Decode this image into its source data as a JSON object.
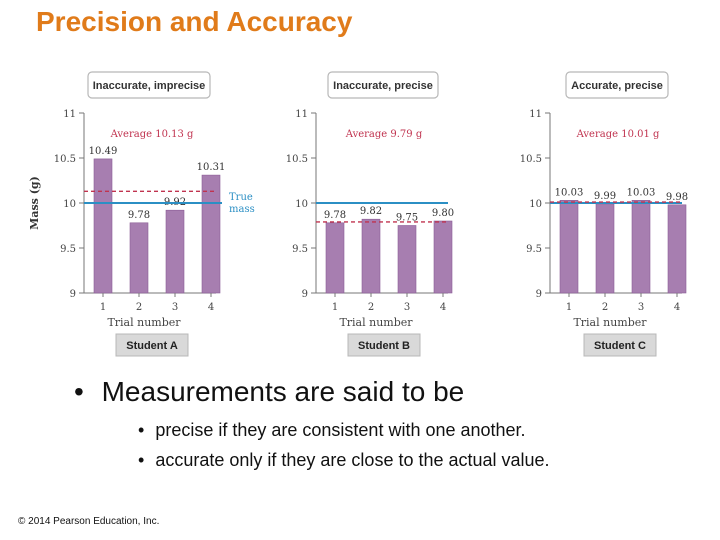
{
  "title": "Precision and Accuracy",
  "colors": {
    "title": "#e07b1a",
    "bar": "#a77eb0",
    "bar_edge": "#8b5c96",
    "true_line": "#2b8fc4",
    "avg": "#c0334f",
    "box_fill": "#d9d9d9",
    "box_edge": "#b8b8b8",
    "axis": "#777777"
  },
  "true_mass_label": [
    "True",
    "mass"
  ],
  "chart_data": [
    {
      "type": "bar",
      "header": "Inaccurate, imprecise",
      "student_label": "Student A",
      "categories": [
        "1",
        "2",
        "3",
        "4"
      ],
      "values": [
        10.49,
        9.78,
        9.92,
        10.31
      ],
      "value_labels": [
        "10.49",
        "9.78",
        "9.92",
        "10.31"
      ],
      "average_label": "Average 10.13 g",
      "average": 10.13,
      "true_mass": 10,
      "xlabel": "Trial number",
      "ylabel": "Mass (g)",
      "yticks": [
        "11",
        "10.5",
        "10",
        "9.5",
        "9"
      ],
      "ylim": [
        9,
        11
      ]
    },
    {
      "type": "bar",
      "header": "Inaccurate, precise",
      "student_label": "Student B",
      "categories": [
        "1",
        "2",
        "3",
        "4"
      ],
      "values": [
        9.78,
        9.82,
        9.75,
        9.8
      ],
      "value_labels": [
        "9.78",
        "9.82",
        "9.75",
        "9.80"
      ],
      "average_label": "Average 9.79 g",
      "average": 9.79,
      "true_mass": 10,
      "xlabel": "Trial number",
      "yticks": [
        "11",
        "10.5",
        "10",
        "9.5",
        "9"
      ],
      "ylim": [
        9,
        11
      ]
    },
    {
      "type": "bar",
      "header": "Accurate, precise",
      "student_label": "Student C",
      "categories": [
        "1",
        "2",
        "3",
        "4"
      ],
      "values": [
        10.03,
        9.99,
        10.03,
        9.98
      ],
      "value_labels": [
        "10.03",
        "9.99",
        "10.03",
        "9.98"
      ],
      "average_label": "Average 10.01 g",
      "average": 10.01,
      "true_mass": 10,
      "xlabel": "Trial number",
      "yticks": [
        "11",
        "10.5",
        "10",
        "9.5",
        "9"
      ],
      "ylim": [
        9,
        11
      ]
    }
  ],
  "bullet_main": "Measurements are said to be",
  "bullets": [
    "precise if they are consistent with one another.",
    "accurate only if they are close to the actual value."
  ],
  "copyright": "© 2014 Pearson Education, Inc."
}
